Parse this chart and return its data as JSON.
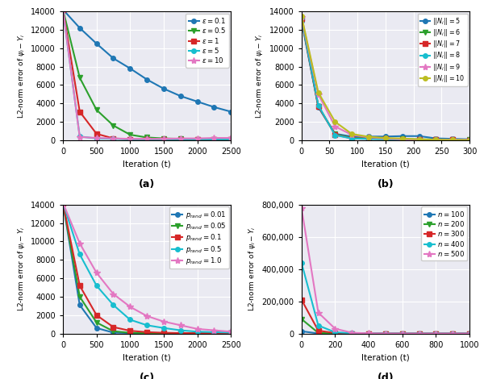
{
  "panel_a": {
    "title": "(a)",
    "xlabel": "Iteration (t)",
    "ylabel": "L2-norm error of $\\psi_i - Y_i$",
    "xlim": [
      0,
      2500
    ],
    "ylim": [
      0,
      14000
    ],
    "yticks": [
      0,
      2000,
      4000,
      6000,
      8000,
      10000,
      12000,
      14000
    ],
    "xticks": [
      0,
      500,
      1000,
      1500,
      2000,
      2500
    ],
    "series": [
      {
        "label": "$\\varepsilon = 0.1$",
        "color": "#1f77b4",
        "marker": "o",
        "x": [
          0,
          250,
          500,
          750,
          1000,
          1250,
          1500,
          1750,
          2000,
          2250,
          2500
        ],
        "y": [
          14200,
          12200,
          10500,
          8900,
          7800,
          6600,
          5600,
          4800,
          4200,
          3600,
          3100
        ]
      },
      {
        "label": "$\\varepsilon = 0.5$",
        "color": "#2ca02c",
        "marker": "v",
        "x": [
          0,
          250,
          500,
          750,
          1000,
          1250,
          1500,
          1750,
          2000,
          2250,
          2500
        ],
        "y": [
          14200,
          6800,
          3300,
          1600,
          600,
          300,
          200,
          150,
          100,
          100,
          100
        ]
      },
      {
        "label": "$\\varepsilon = 1$",
        "color": "#d62728",
        "marker": "s",
        "x": [
          0,
          250,
          500,
          750,
          1000,
          1250,
          1500,
          1750,
          2000,
          2250,
          2500
        ],
        "y": [
          14200,
          3100,
          700,
          200,
          100,
          100,
          100,
          100,
          100,
          100,
          100
        ]
      },
      {
        "label": "$\\varepsilon = 5$",
        "color": "#17becf",
        "marker": "o",
        "x": [
          0,
          250,
          500,
          750,
          1000,
          1250,
          1500,
          1750,
          2000,
          2250,
          2500
        ],
        "y": [
          14200,
          400,
          200,
          150,
          100,
          100,
          100,
          100,
          100,
          100,
          100
        ]
      },
      {
        "label": "$\\varepsilon = 10$",
        "color": "#e377c2",
        "marker": "*",
        "x": [
          0,
          250,
          500,
          750,
          1000,
          1250,
          1500,
          1750,
          2000,
          2250,
          2500
        ],
        "y": [
          14200,
          350,
          250,
          200,
          150,
          150,
          150,
          200,
          200,
          250,
          250
        ]
      }
    ]
  },
  "panel_b": {
    "title": "(b)",
    "xlabel": "Iteration (t)",
    "ylabel": "L2-norm error of $\\psi_i - Y_i$",
    "xlim": [
      0,
      300
    ],
    "ylim": [
      0,
      14000
    ],
    "yticks": [
      0,
      2000,
      4000,
      6000,
      8000,
      10000,
      12000,
      14000
    ],
    "xticks": [
      0,
      50,
      100,
      150,
      200,
      250,
      300
    ],
    "series": [
      {
        "label": "$||N_i|| = 5$",
        "color": "#1f77b4",
        "marker": "o",
        "x": [
          0,
          30,
          60,
          90,
          120,
          150,
          180,
          210,
          240,
          270,
          300
        ],
        "y": [
          13000,
          3600,
          700,
          400,
          400,
          400,
          450,
          450,
          200,
          150,
          100
        ]
      },
      {
        "label": "$||N_i|| = 6$",
        "color": "#2ca02c",
        "marker": "v",
        "x": [
          0,
          30,
          60,
          90,
          120,
          150,
          180,
          210,
          240,
          270,
          300
        ],
        "y": [
          13200,
          3700,
          650,
          250,
          230,
          180,
          130,
          100,
          90,
          70,
          50
        ]
      },
      {
        "label": "$||N_i|| = 7$",
        "color": "#d62728",
        "marker": "s",
        "x": [
          0,
          30,
          60,
          90,
          120,
          150,
          180,
          210,
          240,
          270,
          300
        ],
        "y": [
          13200,
          3700,
          600,
          200,
          180,
          130,
          90,
          70,
          55,
          45,
          35
        ]
      },
      {
        "label": "$||N_i|| = 8$",
        "color": "#17becf",
        "marker": "o",
        "x": [
          0,
          30,
          60,
          90,
          120,
          150,
          180,
          210,
          240,
          270,
          300
        ],
        "y": [
          13300,
          3800,
          550,
          190,
          140,
          100,
          75,
          55,
          45,
          35,
          25
        ]
      },
      {
        "label": "$||N_i|| = 9$",
        "color": "#e377c2",
        "marker": "*",
        "x": [
          0,
          30,
          60,
          90,
          120,
          150,
          180,
          210,
          240,
          270,
          300
        ],
        "y": [
          13400,
          5000,
          1500,
          580,
          330,
          190,
          95,
          75,
          55,
          38,
          28
        ]
      },
      {
        "label": "$||N_i|| = 10$",
        "color": "#bcbd22",
        "marker": "o",
        "x": [
          0,
          30,
          60,
          90,
          120,
          150,
          180,
          210,
          240,
          270,
          300
        ],
        "y": [
          13500,
          5200,
          2000,
          680,
          380,
          240,
          190,
          95,
          55,
          38,
          18
        ]
      }
    ]
  },
  "panel_c": {
    "title": "(c)",
    "xlabel": "Iteration (t)",
    "ylabel": "L2-norm error of $\\psi_i - Y_i$",
    "xlim": [
      0,
      2500
    ],
    "ylim": [
      0,
      14000
    ],
    "yticks": [
      0,
      2000,
      4000,
      6000,
      8000,
      10000,
      12000,
      14000
    ],
    "xticks": [
      0,
      500,
      1000,
      1500,
      2000,
      2500
    ],
    "series": [
      {
        "label": "$p_{rand} = 0.01$",
        "color": "#1f77b4",
        "marker": "o",
        "x": [
          0,
          250,
          500,
          750,
          1000,
          1250,
          1500,
          1750,
          2000,
          2250,
          2500
        ],
        "y": [
          14200,
          3100,
          600,
          100,
          50,
          30,
          20,
          20,
          20,
          20,
          20
        ]
      },
      {
        "label": "$p_{rand} = 0.05$",
        "color": "#2ca02c",
        "marker": "v",
        "x": [
          0,
          250,
          500,
          750,
          1000,
          1250,
          1500,
          1750,
          2000,
          2250,
          2500
        ],
        "y": [
          14200,
          4000,
          1200,
          250,
          80,
          50,
          30,
          20,
          20,
          20,
          20
        ]
      },
      {
        "label": "$p_{rand} = 0.1$",
        "color": "#d62728",
        "marker": "s",
        "x": [
          0,
          250,
          500,
          750,
          1000,
          1250,
          1500,
          1750,
          2000,
          2250,
          2500
        ],
        "y": [
          14200,
          5200,
          2000,
          700,
          300,
          150,
          80,
          50,
          30,
          20,
          20
        ]
      },
      {
        "label": "$p_{rand} = 0.5$",
        "color": "#17becf",
        "marker": "o",
        "x": [
          0,
          250,
          500,
          750,
          1000,
          1250,
          1500,
          1750,
          2000,
          2250,
          2500
        ],
        "y": [
          14200,
          8600,
          5200,
          3100,
          1500,
          900,
          600,
          350,
          200,
          150,
          100
        ]
      },
      {
        "label": "$p_{rand} = 1.0$",
        "color": "#e377c2",
        "marker": "*",
        "x": [
          0,
          250,
          500,
          750,
          1000,
          1250,
          1500,
          1750,
          2000,
          2250,
          2500
        ],
        "y": [
          14200,
          9800,
          6600,
          4300,
          2900,
          1900,
          1300,
          900,
          500,
          350,
          200
        ]
      }
    ]
  },
  "panel_d": {
    "title": "(d)",
    "xlabel": "Iteration (t)",
    "ylabel": "L2-norm error of $\\psi_i - Y_i$",
    "xlim": [
      0,
      1000
    ],
    "ylim": [
      0,
      800000
    ],
    "yticks": [
      0,
      200000,
      400000,
      600000,
      800000
    ],
    "xticks": [
      0,
      200,
      400,
      600,
      800,
      1000
    ],
    "series": [
      {
        "label": "$n = 100$",
        "color": "#1f77b4",
        "marker": "o",
        "x": [
          0,
          100,
          200,
          300,
          400,
          500,
          600,
          700,
          800,
          900,
          1000
        ],
        "y": [
          14000,
          500,
          100,
          50,
          30,
          20,
          20,
          20,
          20,
          20,
          20
        ]
      },
      {
        "label": "$n = 200$",
        "color": "#2ca02c",
        "marker": "v",
        "x": [
          0,
          100,
          200,
          300,
          400,
          500,
          600,
          700,
          800,
          900,
          1000
        ],
        "y": [
          90000,
          4000,
          500,
          100,
          50,
          30,
          20,
          20,
          20,
          20,
          20
        ]
      },
      {
        "label": "$n = 300$",
        "color": "#d62728",
        "marker": "s",
        "x": [
          0,
          100,
          200,
          300,
          400,
          500,
          600,
          700,
          800,
          900,
          1000
        ],
        "y": [
          210000,
          18000,
          3000,
          500,
          100,
          60,
          40,
          30,
          20,
          20,
          20
        ]
      },
      {
        "label": "$n = 400$",
        "color": "#17becf",
        "marker": "o",
        "x": [
          0,
          100,
          200,
          300,
          400,
          500,
          600,
          700,
          800,
          900,
          1000
        ],
        "y": [
          440000,
          50000,
          8000,
          2000,
          400,
          100,
          60,
          40,
          30,
          20,
          20
        ]
      },
      {
        "label": "$n = 500$",
        "color": "#e377c2",
        "marker": "*",
        "x": [
          0,
          100,
          200,
          300,
          400,
          500,
          600,
          700,
          800,
          900,
          1000
        ],
        "y": [
          780000,
          130000,
          30000,
          5000,
          1000,
          300,
          100,
          60,
          40,
          30,
          20
        ]
      }
    ]
  }
}
